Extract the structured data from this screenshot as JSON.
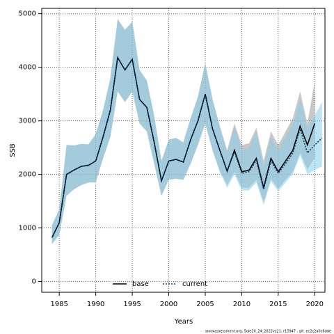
{
  "chart_data": {
    "type": "line",
    "xlabel": "Years",
    "ylabel": "SSB",
    "footnote": "stockassessment.org, Sole20_24_2022vs21, r15947 , git: ec2c2a0c6dde",
    "x": [
      1984,
      1985,
      1986,
      1987,
      1988,
      1989,
      1990,
      1991,
      1992,
      1993,
      1994,
      1995,
      1996,
      1997,
      1998,
      1999,
      2000,
      2001,
      2002,
      2003,
      2004,
      2005,
      2006,
      2007,
      2008,
      2009,
      2010,
      2011,
      2012,
      2013,
      2014,
      2015,
      2016,
      2017,
      2018,
      2019,
      2020,
      2021
    ],
    "series": [
      {
        "name": "base",
        "color": "#000000",
        "dash": "solid",
        "band_color": "#9a9a9a",
        "values": [
          820,
          1100,
          2000,
          2080,
          2150,
          2170,
          2250,
          2700,
          3200,
          4180,
          3950,
          4150,
          3400,
          3250,
          2600,
          1880,
          2250,
          2280,
          2230,
          2650,
          3000,
          3500,
          2850,
          2450,
          2060,
          2450,
          2050,
          2080,
          2300,
          1750,
          2300,
          2050,
          2250,
          2450,
          2900,
          2550,
          2950,
          null
        ],
        "upper": [
          1050,
          1350,
          2550,
          2540,
          2570,
          2560,
          2750,
          3200,
          3800,
          4900,
          4700,
          4850,
          3950,
          3750,
          3100,
          2250,
          2650,
          2680,
          2600,
          3050,
          3450,
          4080,
          3400,
          2900,
          2450,
          2950,
          2550,
          2580,
          2870,
          2250,
          2800,
          2550,
          2800,
          3050,
          3550,
          2950,
          3750,
          null
        ],
        "lower": [
          700,
          870,
          1600,
          1720,
          1800,
          1850,
          1850,
          2300,
          2700,
          3550,
          3350,
          3550,
          2950,
          2800,
          2200,
          1600,
          1900,
          1920,
          1900,
          2200,
          2550,
          2950,
          2450,
          2050,
          1800,
          2050,
          1750,
          1750,
          1900,
          1480,
          1920,
          1730,
          1900,
          2050,
          2400,
          2100,
          2300,
          null
        ]
      },
      {
        "name": "current",
        "color": "#0b3c6e",
        "dash": "dotted",
        "band_color": "#87ceeb",
        "values": [
          820,
          1100,
          2000,
          2080,
          2150,
          2170,
          2250,
          2700,
          3200,
          4180,
          3950,
          4150,
          3400,
          3250,
          2600,
          1880,
          2250,
          2280,
          2230,
          2650,
          3000,
          3500,
          2850,
          2450,
          2060,
          2420,
          2020,
          2050,
          2260,
          1720,
          2250,
          2020,
          2200,
          2400,
          2850,
          2400,
          2550,
          2680
        ],
        "upper": [
          1050,
          1350,
          2550,
          2540,
          2570,
          2560,
          2750,
          3200,
          3800,
          4900,
          4700,
          4850,
          3950,
          3750,
          3100,
          2250,
          2650,
          2680,
          2600,
          3050,
          3450,
          4080,
          3400,
          2900,
          2400,
          2900,
          2450,
          2500,
          2800,
          2150,
          2700,
          2450,
          2700,
          2950,
          3400,
          2850,
          3100,
          3350
        ],
        "lower": [
          700,
          870,
          1600,
          1720,
          1800,
          1850,
          1850,
          2300,
          2700,
          3550,
          3350,
          3550,
          2950,
          2800,
          2200,
          1600,
          1900,
          1920,
          1900,
          2200,
          2550,
          2950,
          2450,
          2050,
          1750,
          2000,
          1700,
          1700,
          1850,
          1430,
          1870,
          1680,
          1850,
          2000,
          2350,
          2000,
          2080,
          2150
        ]
      }
    ],
    "xlim": [
      1982.6,
      2021.4
    ],
    "ylim": [
      -200,
      5100
    ],
    "xticks": [
      1985,
      1990,
      1995,
      2000,
      2005,
      2010,
      2015,
      2020
    ],
    "yticks": [
      0,
      1000,
      2000,
      3000,
      4000,
      5000
    ],
    "grid": true,
    "legend": "bottom"
  }
}
